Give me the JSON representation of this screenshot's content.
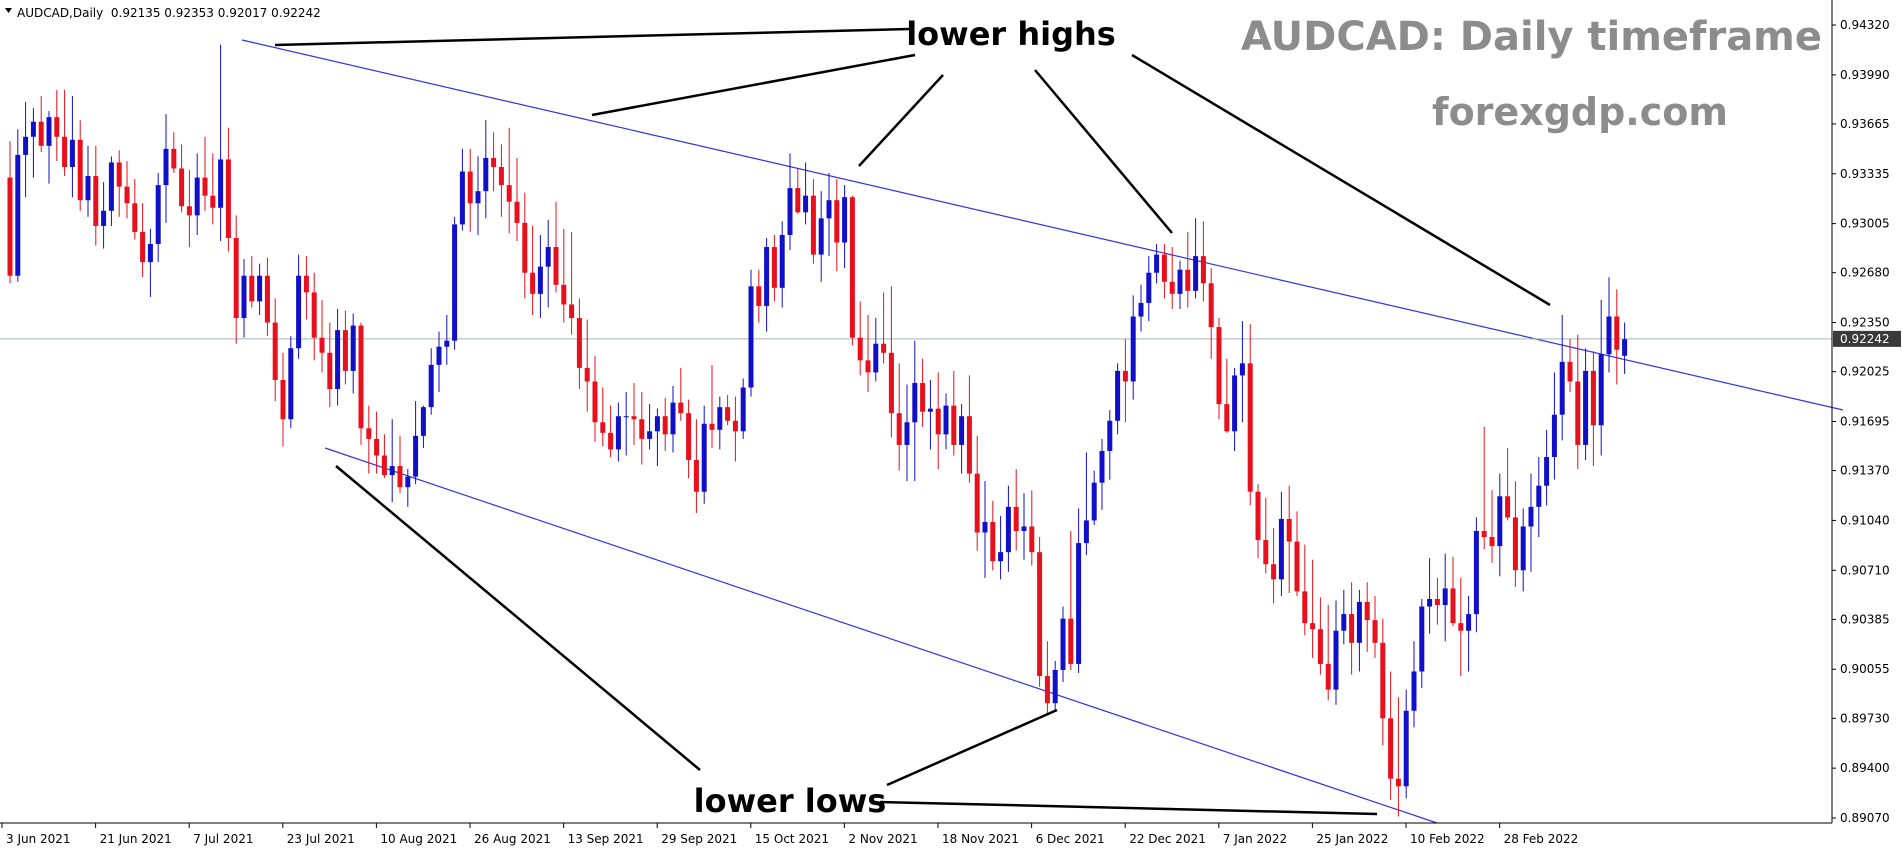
{
  "header": {
    "symbol_line": "AUDCAD,Daily  0.92135 0.92353 0.92017 0.92242"
  },
  "watermark": {
    "title": "AUDCAD: Daily timeframe",
    "subtitle": "forexgdp.com"
  },
  "annotations": {
    "lower_highs": "lower highs",
    "lower_lows": "lower lows"
  },
  "current_price": "0.92242",
  "colors": {
    "bull": "#1010c8",
    "bear": "#e8101c",
    "trendline": "#3232e6",
    "price_line": "#a8b4bc",
    "arrow": "#000000",
    "price_tag_bg": "#3a3a3a"
  },
  "chart_data": {
    "type": "candlestick",
    "symbol": "AUDCAD",
    "timeframe": "Daily",
    "ohlc_header": {
      "open": 0.92135,
      "high": 0.92353,
      "low": 0.92017,
      "close": 0.92242
    },
    "y_ticks": [
      "0.94320",
      "0.93990",
      "0.93665",
      "0.93335",
      "0.93005",
      "0.92680",
      "0.92350",
      "0.92025",
      "0.91695",
      "0.91370",
      "0.91040",
      "0.90710",
      "0.90385",
      "0.90055",
      "0.89730",
      "0.89400",
      "0.89070"
    ],
    "ylim": [
      0.89,
      0.9436
    ],
    "x_ticks": [
      {
        "label": "3 Jun 2021",
        "bar": 0
      },
      {
        "label": "21 Jun 2021",
        "bar": 12
      },
      {
        "label": "7 Jul 2021",
        "bar": 24
      },
      {
        "label": "23 Jul 2021",
        "bar": 36
      },
      {
        "label": "10 Aug 2021",
        "bar": 48
      },
      {
        "label": "26 Aug 2021",
        "bar": 60
      },
      {
        "label": "13 Sep 2021",
        "bar": 72
      },
      {
        "label": "29 Sep 2021",
        "bar": 84
      },
      {
        "label": "15 Oct 2021",
        "bar": 96
      },
      {
        "label": "2 Nov 2021",
        "bar": 108
      },
      {
        "label": "18 Nov 2021",
        "bar": 120
      },
      {
        "label": "6 Dec 2021",
        "bar": 132
      },
      {
        "label": "22 Dec 2021",
        "bar": 144
      },
      {
        "label": "7 Jan 2022",
        "bar": 156
      },
      {
        "label": "25 Jan 2022",
        "bar": 168
      },
      {
        "label": "10 Feb 2022",
        "bar": 180
      },
      {
        "label": "28 Feb 2022",
        "bar": 192
      }
    ],
    "candles": [
      [
        0.9331,
        0.9355,
        0.9261,
        0.9266
      ],
      [
        0.9266,
        0.9363,
        0.9262,
        0.9346
      ],
      [
        0.9346,
        0.9381,
        0.9318,
        0.9358
      ],
      [
        0.9358,
        0.9377,
        0.9331,
        0.9368
      ],
      [
        0.9368,
        0.9385,
        0.9348,
        0.9352
      ],
      [
        0.9352,
        0.9375,
        0.9327,
        0.9371
      ],
      [
        0.9371,
        0.9389,
        0.9342,
        0.9358
      ],
      [
        0.9358,
        0.9389,
        0.9332,
        0.9338
      ],
      [
        0.9338,
        0.9385,
        0.9318,
        0.9356
      ],
      [
        0.9356,
        0.9369,
        0.9309,
        0.9316
      ],
      [
        0.9316,
        0.9352,
        0.9305,
        0.9332
      ],
      [
        0.9332,
        0.9352,
        0.9286,
        0.9299
      ],
      [
        0.9299,
        0.9328,
        0.9284,
        0.9309
      ],
      [
        0.9309,
        0.9345,
        0.9299,
        0.9341
      ],
      [
        0.9341,
        0.9349,
        0.9305,
        0.9325
      ],
      [
        0.9325,
        0.9342,
        0.9304,
        0.9314
      ],
      [
        0.9314,
        0.933,
        0.929,
        0.9295
      ],
      [
        0.9295,
        0.9314,
        0.9265,
        0.9275
      ],
      [
        0.9275,
        0.9297,
        0.9252,
        0.9287
      ],
      [
        0.9287,
        0.9334,
        0.9275,
        0.9326
      ],
      [
        0.9326,
        0.9373,
        0.9301,
        0.935
      ],
      [
        0.935,
        0.9361,
        0.9334,
        0.9337
      ],
      [
        0.9337,
        0.9353,
        0.9308,
        0.9312
      ],
      [
        0.9312,
        0.9336,
        0.9285,
        0.9306
      ],
      [
        0.9306,
        0.9347,
        0.9293,
        0.9331
      ],
      [
        0.9331,
        0.9358,
        0.9309,
        0.9319
      ],
      [
        0.9319,
        0.9347,
        0.93,
        0.9311
      ],
      [
        0.9311,
        0.9419,
        0.9289,
        0.9343
      ],
      [
        0.9343,
        0.9364,
        0.9282,
        0.9291
      ],
      [
        0.9291,
        0.9306,
        0.9221,
        0.9238
      ],
      [
        0.9238,
        0.9277,
        0.9225,
        0.9266
      ],
      [
        0.9266,
        0.9279,
        0.9245,
        0.9249
      ],
      [
        0.9249,
        0.9274,
        0.924,
        0.9266
      ],
      [
        0.9266,
        0.9278,
        0.9226,
        0.9235
      ],
      [
        0.9235,
        0.9251,
        0.9183,
        0.9197
      ],
      [
        0.9197,
        0.9215,
        0.9153,
        0.9171
      ],
      [
        0.9171,
        0.9226,
        0.9165,
        0.9218
      ],
      [
        0.9218,
        0.928,
        0.9211,
        0.9266
      ],
      [
        0.9266,
        0.9279,
        0.9237,
        0.9255
      ],
      [
        0.9255,
        0.9268,
        0.921,
        0.9225
      ],
      [
        0.9225,
        0.925,
        0.9202,
        0.9215
      ],
      [
        0.9215,
        0.9235,
        0.9179,
        0.9191
      ],
      [
        0.9191,
        0.9244,
        0.918,
        0.923
      ],
      [
        0.923,
        0.9243,
        0.9194,
        0.9203
      ],
      [
        0.9203,
        0.9241,
        0.9188,
        0.9233
      ],
      [
        0.9233,
        0.9235,
        0.9154,
        0.9165
      ],
      [
        0.9165,
        0.918,
        0.9135,
        0.9158
      ],
      [
        0.9158,
        0.9176,
        0.9135,
        0.9147
      ],
      [
        0.9147,
        0.9161,
        0.9132,
        0.9134
      ],
      [
        0.9134,
        0.9171,
        0.9116,
        0.914
      ],
      [
        0.914,
        0.916,
        0.9122,
        0.9126
      ],
      [
        0.9126,
        0.9138,
        0.9113,
        0.9133
      ],
      [
        0.9133,
        0.9183,
        0.9128,
        0.916
      ],
      [
        0.916,
        0.918,
        0.9152,
        0.9179
      ],
      [
        0.9179,
        0.9218,
        0.9174,
        0.9207
      ],
      [
        0.9207,
        0.9229,
        0.9189,
        0.9219
      ],
      [
        0.9219,
        0.924,
        0.9207,
        0.9223
      ],
      [
        0.9223,
        0.9305,
        0.9217,
        0.93
      ],
      [
        0.93,
        0.935,
        0.9296,
        0.9335
      ],
      [
        0.9335,
        0.935,
        0.9295,
        0.9314
      ],
      [
        0.9314,
        0.9345,
        0.9293,
        0.9322
      ],
      [
        0.9322,
        0.9369,
        0.9304,
        0.9344
      ],
      [
        0.9344,
        0.9361,
        0.9322,
        0.9338
      ],
      [
        0.9338,
        0.9353,
        0.9305,
        0.9326
      ],
      [
        0.9326,
        0.9364,
        0.9294,
        0.9315
      ],
      [
        0.9315,
        0.9344,
        0.9289,
        0.9301
      ],
      [
        0.9301,
        0.9321,
        0.9251,
        0.9268
      ],
      [
        0.9268,
        0.9299,
        0.924,
        0.9254
      ],
      [
        0.9254,
        0.9293,
        0.9238,
        0.9272
      ],
      [
        0.9272,
        0.9303,
        0.9245,
        0.9285
      ],
      [
        0.9285,
        0.9315,
        0.9255,
        0.926
      ],
      [
        0.926,
        0.9297,
        0.9235,
        0.9247
      ],
      [
        0.9247,
        0.9295,
        0.9227,
        0.9238
      ],
      [
        0.9238,
        0.9251,
        0.9191,
        0.9205
      ],
      [
        0.9205,
        0.9237,
        0.9176,
        0.9196
      ],
      [
        0.9196,
        0.9213,
        0.9156,
        0.9169
      ],
      [
        0.9169,
        0.9192,
        0.9153,
        0.9162
      ],
      [
        0.9162,
        0.918,
        0.9146,
        0.9151
      ],
      [
        0.9151,
        0.9182,
        0.9143,
        0.9173
      ],
      [
        0.9173,
        0.9189,
        0.9147,
        0.9173
      ],
      [
        0.9173,
        0.9195,
        0.9154,
        0.9171
      ],
      [
        0.9171,
        0.9189,
        0.9141,
        0.9158
      ],
      [
        0.9158,
        0.9181,
        0.9151,
        0.9163
      ],
      [
        0.9163,
        0.9178,
        0.914,
        0.9173
      ],
      [
        0.9173,
        0.9185,
        0.915,
        0.9161
      ],
      [
        0.9161,
        0.9193,
        0.9149,
        0.9182
      ],
      [
        0.9182,
        0.9205,
        0.917,
        0.9175
      ],
      [
        0.9175,
        0.9184,
        0.9132,
        0.9144
      ],
      [
        0.9144,
        0.9171,
        0.9109,
        0.9123
      ],
      [
        0.9123,
        0.918,
        0.9115,
        0.9168
      ],
      [
        0.9168,
        0.9207,
        0.9152,
        0.9164
      ],
      [
        0.9164,
        0.9186,
        0.9151,
        0.9179
      ],
      [
        0.9179,
        0.9187,
        0.9167,
        0.917
      ],
      [
        0.917,
        0.9186,
        0.9143,
        0.9163
      ],
      [
        0.9163,
        0.9198,
        0.9158,
        0.9192
      ],
      [
        0.9192,
        0.927,
        0.9186,
        0.9259
      ],
      [
        0.9259,
        0.927,
        0.9235,
        0.9246
      ],
      [
        0.9246,
        0.9291,
        0.9229,
        0.9285
      ],
      [
        0.9285,
        0.9293,
        0.9249,
        0.9258
      ],
      [
        0.9258,
        0.9302,
        0.9245,
        0.9293
      ],
      [
        0.9293,
        0.9347,
        0.9283,
        0.9324
      ],
      [
        0.9324,
        0.9337,
        0.9307,
        0.9308
      ],
      [
        0.9308,
        0.9341,
        0.93,
        0.9319
      ],
      [
        0.9319,
        0.933,
        0.9274,
        0.928
      ],
      [
        0.928,
        0.9322,
        0.9262,
        0.9304
      ],
      [
        0.9304,
        0.9334,
        0.9279,
        0.9316
      ],
      [
        0.9316,
        0.933,
        0.9269,
        0.9288
      ],
      [
        0.9288,
        0.9326,
        0.9271,
        0.9318
      ],
      [
        0.9318,
        0.9319,
        0.922,
        0.9225
      ],
      [
        0.9225,
        0.9249,
        0.92,
        0.921
      ],
      [
        0.921,
        0.924,
        0.9189,
        0.9202
      ],
      [
        0.9202,
        0.9238,
        0.9196,
        0.9221
      ],
      [
        0.9221,
        0.9255,
        0.9208,
        0.9215
      ],
      [
        0.9215,
        0.9259,
        0.9159,
        0.9175
      ],
      [
        0.9175,
        0.9208,
        0.9137,
        0.9154
      ],
      [
        0.9154,
        0.9194,
        0.913,
        0.9169
      ],
      [
        0.9169,
        0.9223,
        0.913,
        0.9195
      ],
      [
        0.9195,
        0.9211,
        0.9166,
        0.9176
      ],
      [
        0.9176,
        0.9197,
        0.9151,
        0.9178
      ],
      [
        0.9178,
        0.9202,
        0.9138,
        0.9161
      ],
      [
        0.9161,
        0.9188,
        0.9151,
        0.918
      ],
      [
        0.918,
        0.9203,
        0.9147,
        0.9154
      ],
      [
        0.9154,
        0.9181,
        0.9135,
        0.9173
      ],
      [
        0.9173,
        0.92,
        0.9129,
        0.9135
      ],
      [
        0.9135,
        0.916,
        0.9084,
        0.9096
      ],
      [
        0.9096,
        0.913,
        0.9066,
        0.9103
      ],
      [
        0.9103,
        0.9117,
        0.9071,
        0.9077
      ],
      [
        0.9077,
        0.9107,
        0.9065,
        0.9083
      ],
      [
        0.9083,
        0.9127,
        0.907,
        0.9113
      ],
      [
        0.9113,
        0.9138,
        0.9084,
        0.9097
      ],
      [
        0.9097,
        0.9122,
        0.9078,
        0.91
      ],
      [
        0.91,
        0.9124,
        0.9074,
        0.9083
      ],
      [
        0.9083,
        0.9093,
        0.8994,
        0.9001
      ],
      [
        0.9001,
        0.9024,
        0.8975,
        0.8983
      ],
      [
        0.8983,
        0.9011,
        0.8978,
        0.9005
      ],
      [
        0.9005,
        0.9047,
        0.8997,
        0.9039
      ],
      [
        0.9039,
        0.9097,
        0.9005,
        0.9009
      ],
      [
        0.9009,
        0.9112,
        0.9003,
        0.9089
      ],
      [
        0.9089,
        0.9149,
        0.9081,
        0.9104
      ],
      [
        0.9104,
        0.9137,
        0.9101,
        0.9129
      ],
      [
        0.9129,
        0.9158,
        0.9111,
        0.915
      ],
      [
        0.915,
        0.9177,
        0.9131,
        0.917
      ],
      [
        0.917,
        0.9208,
        0.9161,
        0.9203
      ],
      [
        0.9203,
        0.9224,
        0.9169,
        0.9196
      ],
      [
        0.9196,
        0.9253,
        0.9184,
        0.9239
      ],
      [
        0.9239,
        0.926,
        0.9229,
        0.9248
      ],
      [
        0.9248,
        0.9279,
        0.9236,
        0.9268
      ],
      [
        0.9268,
        0.9287,
        0.9261,
        0.928
      ],
      [
        0.928,
        0.9287,
        0.9251,
        0.9262
      ],
      [
        0.9262,
        0.9285,
        0.9244,
        0.9254
      ],
      [
        0.9254,
        0.9276,
        0.9244,
        0.927
      ],
      [
        0.927,
        0.9295,
        0.9245,
        0.9256
      ],
      [
        0.9256,
        0.9304,
        0.9251,
        0.9279
      ],
      [
        0.9279,
        0.9302,
        0.9249,
        0.9261
      ],
      [
        0.9261,
        0.9271,
        0.9211,
        0.9232
      ],
      [
        0.9232,
        0.9238,
        0.9171,
        0.9181
      ],
      [
        0.9181,
        0.9211,
        0.9162,
        0.9163
      ],
      [
        0.9163,
        0.9205,
        0.915,
        0.92
      ],
      [
        0.92,
        0.9236,
        0.9169,
        0.9208
      ],
      [
        0.9208,
        0.9234,
        0.9114,
        0.9123
      ],
      [
        0.9123,
        0.9128,
        0.9079,
        0.9091
      ],
      [
        0.9091,
        0.9119,
        0.9069,
        0.9075
      ],
      [
        0.9075,
        0.9099,
        0.9049,
        0.9065
      ],
      [
        0.9065,
        0.9123,
        0.9054,
        0.9105
      ],
      [
        0.9105,
        0.9127,
        0.9056,
        0.909
      ],
      [
        0.909,
        0.911,
        0.9054,
        0.9057
      ],
      [
        0.9057,
        0.9088,
        0.9028,
        0.9036
      ],
      [
        0.9036,
        0.9078,
        0.9013,
        0.9032
      ],
      [
        0.9032,
        0.9053,
        0.9002,
        0.9009
      ],
      [
        0.9009,
        0.9048,
        0.8985,
        0.8992
      ],
      [
        0.8992,
        0.9051,
        0.8982,
        0.9031
      ],
      [
        0.9031,
        0.9058,
        0.9022,
        0.9042
      ],
      [
        0.9042,
        0.9063,
        0.9002,
        0.9023
      ],
      [
        0.9023,
        0.9058,
        0.9004,
        0.905
      ],
      [
        0.905,
        0.9063,
        0.9017,
        0.9038
      ],
      [
        0.9038,
        0.9054,
        0.9013,
        0.9023
      ],
      [
        0.9023,
        0.9039,
        0.8955,
        0.8973
      ],
      [
        0.8973,
        0.9004,
        0.8919,
        0.8933
      ],
      [
        0.8933,
        0.8987,
        0.8908,
        0.8928
      ],
      [
        0.8928,
        0.8992,
        0.892,
        0.8978
      ],
      [
        0.8978,
        0.9024,
        0.8967,
        0.9004
      ],
      [
        0.9004,
        0.9052,
        0.8993,
        0.9047
      ],
      [
        0.9047,
        0.9079,
        0.9029,
        0.9052
      ],
      [
        0.9052,
        0.9066,
        0.9035,
        0.9048
      ],
      [
        0.9048,
        0.9082,
        0.9024,
        0.9059
      ],
      [
        0.9059,
        0.908,
        0.9034,
        0.9036
      ],
      [
        0.9036,
        0.9066,
        0.9001,
        0.9031
      ],
      [
        0.9031,
        0.9054,
        0.9004,
        0.9042
      ],
      [
        0.9042,
        0.9106,
        0.903,
        0.9097
      ],
      [
        0.9097,
        0.9166,
        0.9085,
        0.9093
      ],
      [
        0.9093,
        0.9124,
        0.9076,
        0.9087
      ],
      [
        0.9087,
        0.9135,
        0.9067,
        0.912
      ],
      [
        0.912,
        0.9152,
        0.9104,
        0.9106
      ],
      [
        0.9106,
        0.913,
        0.906,
        0.9071
      ],
      [
        0.9071,
        0.9112,
        0.9057,
        0.91
      ],
      [
        0.91,
        0.9135,
        0.907,
        0.9113
      ],
      [
        0.9113,
        0.9146,
        0.9093,
        0.9127
      ],
      [
        0.9127,
        0.9164,
        0.9114,
        0.9146
      ],
      [
        0.9146,
        0.9202,
        0.9131,
        0.9174
      ],
      [
        0.9174,
        0.924,
        0.9157,
        0.9209
      ],
      [
        0.9209,
        0.9224,
        0.9189,
        0.9196
      ],
      [
        0.9196,
        0.9227,
        0.9138,
        0.9154
      ],
      [
        0.9154,
        0.9218,
        0.9144,
        0.9203
      ],
      [
        0.9203,
        0.9216,
        0.914,
        0.9167
      ],
      [
        0.9167,
        0.925,
        0.9147,
        0.9214
      ],
      [
        0.9214,
        0.9265,
        0.9202,
        0.9239
      ],
      [
        0.9239,
        0.9257,
        0.9194,
        0.9217
      ],
      [
        0.9213,
        0.9235,
        0.9201,
        0.9224
      ]
    ]
  }
}
